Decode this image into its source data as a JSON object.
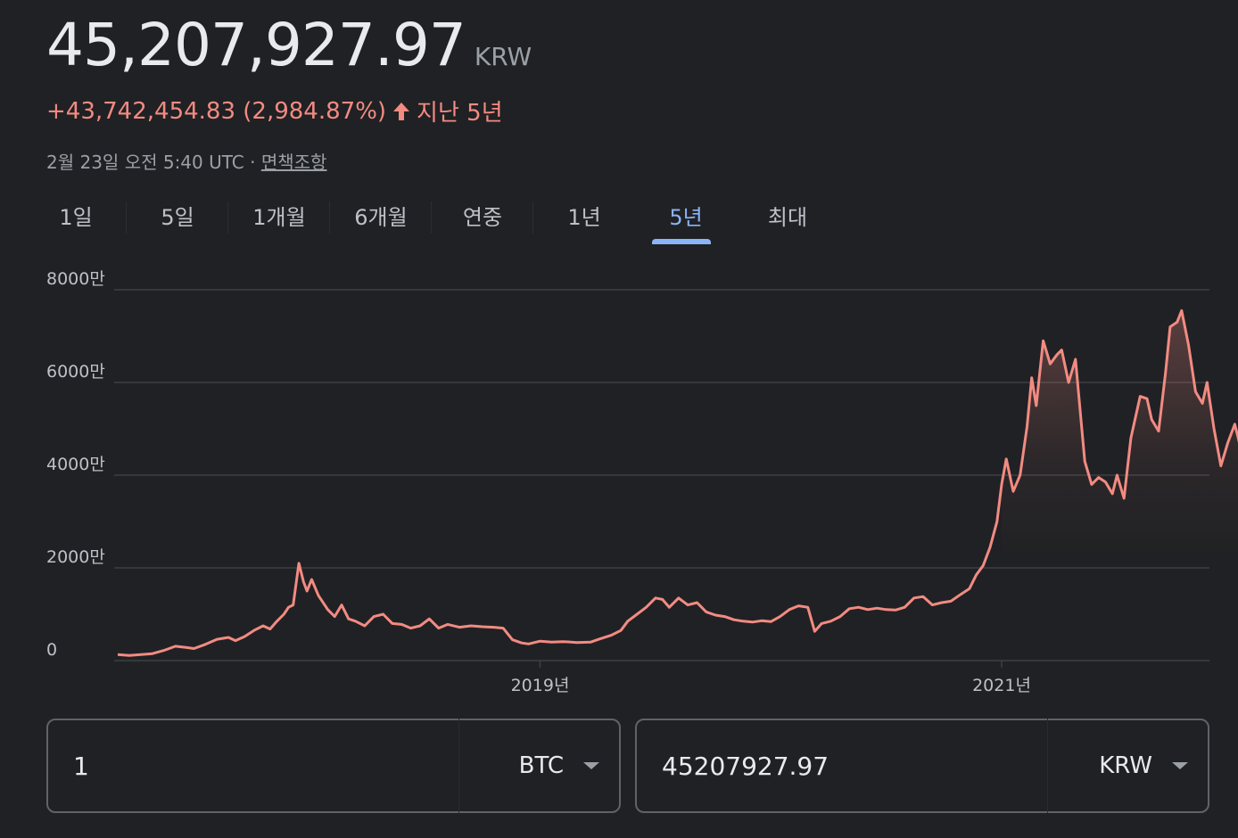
{
  "quote": {
    "price": "45,207,927.97",
    "currency": "KRW",
    "change": "+43,742,454.83 (2,984.87%)",
    "period": "지난 5년",
    "timestamp": "2월 23일 오전 5:40 UTC · ",
    "disclaimer": "면책조항"
  },
  "tabs": [
    {
      "label": "1일"
    },
    {
      "label": "5일"
    },
    {
      "label": "1개월"
    },
    {
      "label": "6개월"
    },
    {
      "label": "연중"
    },
    {
      "label": "1년"
    },
    {
      "label": "5년"
    },
    {
      "label": "최대"
    }
  ],
  "active_tab": "5년",
  "colors": {
    "line": "#f28b82",
    "active_tab": "#8ab4f8",
    "grid": "#3c4043"
  },
  "chart_data": {
    "type": "line",
    "y_ticks": [
      {
        "value": 0,
        "label": "0"
      },
      {
        "value": 20000000,
        "label": "2000만"
      },
      {
        "value": 40000000,
        "label": "4000만"
      },
      {
        "value": 60000000,
        "label": "6000만"
      },
      {
        "value": 80000000,
        "label": "8000만"
      }
    ],
    "x_ticks": [
      {
        "value": 2019.0,
        "label": "2019년"
      },
      {
        "value": 2021.0,
        "label": "2021년"
      }
    ],
    "xlim": [
      2017.17,
      2022.14
    ],
    "ylim": [
      0,
      80000000
    ],
    "series": [
      {
        "values": [
          [
            2017.17,
            1300000
          ],
          [
            2017.22,
            1100000
          ],
          [
            2017.27,
            1300000
          ],
          [
            2017.32,
            1500000
          ],
          [
            2017.37,
            2200000
          ],
          [
            2017.42,
            3100000
          ],
          [
            2017.47,
            2800000
          ],
          [
            2017.5,
            2600000
          ],
          [
            2017.55,
            3500000
          ],
          [
            2017.6,
            4600000
          ],
          [
            2017.65,
            5000000
          ],
          [
            2017.68,
            4300000
          ],
          [
            2017.72,
            5200000
          ],
          [
            2017.76,
            6500000
          ],
          [
            2017.8,
            7500000
          ],
          [
            2017.83,
            6800000
          ],
          [
            2017.86,
            8500000
          ],
          [
            2017.89,
            10000000
          ],
          [
            2017.91,
            11500000
          ],
          [
            2017.93,
            12000000
          ],
          [
            2017.955,
            21000000
          ],
          [
            2017.975,
            17000000
          ],
          [
            2017.99,
            15000000
          ],
          [
            2018.01,
            17500000
          ],
          [
            2018.04,
            14000000
          ],
          [
            2018.08,
            11000000
          ],
          [
            2018.11,
            9500000
          ],
          [
            2018.14,
            12000000
          ],
          [
            2018.17,
            9000000
          ],
          [
            2018.2,
            8500000
          ],
          [
            2018.24,
            7500000
          ],
          [
            2018.28,
            9500000
          ],
          [
            2018.32,
            10000000
          ],
          [
            2018.36,
            8000000
          ],
          [
            2018.4,
            7800000
          ],
          [
            2018.44,
            7000000
          ],
          [
            2018.48,
            7500000
          ],
          [
            2018.52,
            9000000
          ],
          [
            2018.56,
            7000000
          ],
          [
            2018.6,
            7800000
          ],
          [
            2018.65,
            7200000
          ],
          [
            2018.7,
            7500000
          ],
          [
            2018.75,
            7300000
          ],
          [
            2018.8,
            7200000
          ],
          [
            2018.84,
            7000000
          ],
          [
            2018.88,
            4500000
          ],
          [
            2018.92,
            3800000
          ],
          [
            2018.95,
            3600000
          ],
          [
            2019.0,
            4200000
          ],
          [
            2019.05,
            4000000
          ],
          [
            2019.1,
            4100000
          ],
          [
            2019.16,
            3900000
          ],
          [
            2019.22,
            4000000
          ],
          [
            2019.26,
            4700000
          ],
          [
            2019.31,
            5500000
          ],
          [
            2019.35,
            6500000
          ],
          [
            2019.38,
            8500000
          ],
          [
            2019.42,
            10000000
          ],
          [
            2019.46,
            11500000
          ],
          [
            2019.5,
            13500000
          ],
          [
            2019.53,
            13200000
          ],
          [
            2019.56,
            11500000
          ],
          [
            2019.6,
            13500000
          ],
          [
            2019.64,
            12000000
          ],
          [
            2019.68,
            12500000
          ],
          [
            2019.72,
            10500000
          ],
          [
            2019.76,
            9800000
          ],
          [
            2019.8,
            9500000
          ],
          [
            2019.84,
            8800000
          ],
          [
            2019.88,
            8500000
          ],
          [
            2019.92,
            8300000
          ],
          [
            2019.96,
            8600000
          ],
          [
            2020.0,
            8400000
          ],
          [
            2020.04,
            9500000
          ],
          [
            2020.08,
            11000000
          ],
          [
            2020.12,
            11800000
          ],
          [
            2020.16,
            11500000
          ],
          [
            2020.19,
            6300000
          ],
          [
            2020.22,
            8000000
          ],
          [
            2020.26,
            8500000
          ],
          [
            2020.3,
            9500000
          ],
          [
            2020.34,
            11200000
          ],
          [
            2020.38,
            11500000
          ],
          [
            2020.42,
            11000000
          ],
          [
            2020.46,
            11300000
          ],
          [
            2020.5,
            11000000
          ],
          [
            2020.54,
            10900000
          ],
          [
            2020.58,
            11500000
          ],
          [
            2020.62,
            13500000
          ],
          [
            2020.66,
            13800000
          ],
          [
            2020.7,
            12000000
          ],
          [
            2020.74,
            12500000
          ],
          [
            2020.78,
            12800000
          ],
          [
            2020.82,
            14200000
          ],
          [
            2020.86,
            15500000
          ],
          [
            2020.89,
            18500000
          ],
          [
            2020.92,
            20500000
          ],
          [
            2020.95,
            24500000
          ],
          [
            2020.98,
            30000000
          ],
          [
            2021.0,
            38000000
          ],
          [
            2021.02,
            43500000
          ],
          [
            2021.05,
            36500000
          ],
          [
            2021.08,
            40000000
          ],
          [
            2021.11,
            50500000
          ],
          [
            2021.13,
            61000000
          ],
          [
            2021.15,
            55000000
          ],
          [
            2021.18,
            69000000
          ],
          [
            2021.21,
            64000000
          ],
          [
            2021.24,
            66000000
          ],
          [
            2021.26,
            67000000
          ],
          [
            2021.29,
            60000000
          ],
          [
            2021.32,
            65000000
          ],
          [
            2021.36,
            43000000
          ],
          [
            2021.39,
            38000000
          ],
          [
            2021.42,
            39500000
          ],
          [
            2021.45,
            38500000
          ],
          [
            2021.48,
            36000000
          ],
          [
            2021.5,
            40000000
          ],
          [
            2021.53,
            35000000
          ],
          [
            2021.56,
            48000000
          ],
          [
            2021.6,
            57000000
          ],
          [
            2021.63,
            56500000
          ],
          [
            2021.65,
            52000000
          ],
          [
            2021.68,
            49500000
          ],
          [
            2021.71,
            62000000
          ],
          [
            2021.73,
            72000000
          ],
          [
            2021.76,
            73000000
          ],
          [
            2021.78,
            75500000
          ],
          [
            2021.81,
            68000000
          ],
          [
            2021.84,
            58000000
          ],
          [
            2021.87,
            55500000
          ],
          [
            2021.89,
            60000000
          ],
          [
            2021.92,
            50000000
          ],
          [
            2021.95,
            42000000
          ],
          [
            2021.98,
            47000000
          ],
          [
            2022.01,
            51000000
          ],
          [
            2022.03,
            47000000
          ],
          [
            2022.06,
            45207927.97
          ]
        ]
      }
    ]
  },
  "converter": {
    "from_amount": "1",
    "from_currency": "BTC",
    "to_amount": "45207927.97",
    "to_currency": "KRW"
  }
}
